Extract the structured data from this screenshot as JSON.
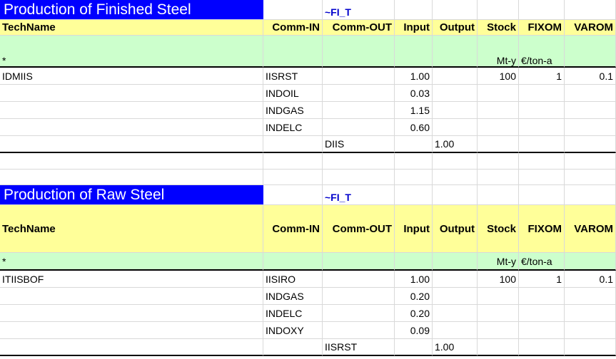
{
  "table1": {
    "title": "Production of Finished Steel",
    "tag": "~FI_T",
    "headers": [
      "TechName",
      "Comm-IN",
      "Comm-OUT",
      "Input",
      "Output",
      "Stock",
      "FIXOM",
      "VAROM"
    ],
    "units": {
      "techname": "*",
      "stock": "Mt-y",
      "fixom": "€/ton-a"
    },
    "rows": [
      {
        "tech": "IDMIIS",
        "comm_in": "IISRST",
        "comm_out": "",
        "input": "1.00",
        "output": "",
        "stock": "100",
        "fixom": "1",
        "varom": "0.1"
      },
      {
        "tech": "",
        "comm_in": "INDOIL",
        "comm_out": "",
        "input": "0.03",
        "output": "",
        "stock": "",
        "fixom": "",
        "varom": ""
      },
      {
        "tech": "",
        "comm_in": "INDGAS",
        "comm_out": "",
        "input": "1.15",
        "output": "",
        "stock": "",
        "fixom": "",
        "varom": ""
      },
      {
        "tech": "",
        "comm_in": "INDELC",
        "comm_out": "",
        "input": "0.60",
        "output": "",
        "stock": "",
        "fixom": "",
        "varom": ""
      },
      {
        "tech": "",
        "comm_in": "",
        "comm_out": "DIIS",
        "input": "",
        "output": "1.00",
        "stock": "",
        "fixom": "",
        "varom": ""
      }
    ]
  },
  "table2": {
    "title": "Production of Raw Steel",
    "tag": "~FI_T",
    "headers": [
      "TechName",
      "Comm-IN",
      "Comm-OUT",
      "Input",
      "Output",
      "Stock",
      "FIXOM",
      "VAROM"
    ],
    "units": {
      "techname": "*",
      "stock": "Mt-y",
      "fixom": "€/ton-a"
    },
    "rows": [
      {
        "tech": "ITIISBOF",
        "comm_in": "IISIRO",
        "comm_out": "",
        "input": "1.00",
        "output": "",
        "stock": "100",
        "fixom": "1",
        "varom": "0.1"
      },
      {
        "tech": "",
        "comm_in": "INDGAS",
        "comm_out": "",
        "input": "0.20",
        "output": "",
        "stock": "",
        "fixom": "",
        "varom": ""
      },
      {
        "tech": "",
        "comm_in": "INDELC",
        "comm_out": "",
        "input": "0.20",
        "output": "",
        "stock": "",
        "fixom": "",
        "varom": ""
      },
      {
        "tech": "",
        "comm_in": "INDOXY",
        "comm_out": "",
        "input": "0.09",
        "output": "",
        "stock": "",
        "fixom": "",
        "varom": ""
      },
      {
        "tech": "",
        "comm_in": "",
        "comm_out": "IISRST",
        "input": "",
        "output": "1.00",
        "stock": "",
        "fixom": "",
        "varom": ""
      }
    ]
  }
}
